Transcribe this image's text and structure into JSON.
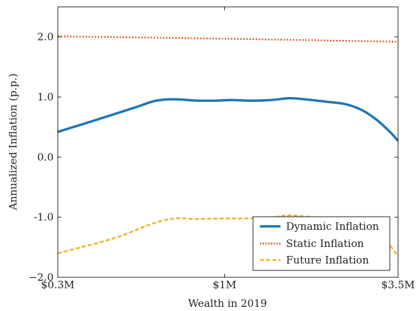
{
  "chart_data": {
    "type": "line",
    "xlabel": "Wealth in 2019",
    "ylabel": "Annualized Inflation (p.p.)",
    "x_scale": "log",
    "xlim": [
      0.3,
      3.5
    ],
    "ylim": [
      -2.0,
      2.5
    ],
    "x_ticks": [
      {
        "value": 0.3,
        "label": "$0.3M"
      },
      {
        "value": 1.0,
        "label": "$1M"
      },
      {
        "value": 3.5,
        "label": "$3.5M"
      }
    ],
    "y_ticks": [
      {
        "value": 2.0,
        "label": "2.0"
      },
      {
        "value": 1.0,
        "label": "1.0"
      },
      {
        "value": 0.0,
        "label": "0.0"
      },
      {
        "value": -1.0,
        "label": "-1.0"
      },
      {
        "value": -2.0,
        "label": "−2.0"
      }
    ],
    "grid": false,
    "legend_position": "bottom-right",
    "series": [
      {
        "name": "Dynamic Inflation",
        "color": "#1f77b4",
        "style": "solid",
        "x": [
          0.3,
          0.36,
          0.43,
          0.52,
          0.6,
          0.66,
          0.72,
          0.82,
          0.95,
          1.05,
          1.2,
          1.4,
          1.6,
          1.8,
          2.1,
          2.4,
          2.7,
          3.0,
          3.3,
          3.5
        ],
        "values": [
          0.42,
          0.55,
          0.68,
          0.82,
          0.93,
          0.96,
          0.96,
          0.94,
          0.94,
          0.95,
          0.94,
          0.95,
          0.98,
          0.96,
          0.92,
          0.88,
          0.78,
          0.62,
          0.42,
          0.27
        ]
      },
      {
        "name": "Static Inflation",
        "color": "#e05a1c",
        "style": "dotted",
        "x": [
          0.3,
          1.0,
          3.5
        ],
        "values": [
          2.01,
          1.97,
          1.92
        ]
      },
      {
        "name": "Future Inflation",
        "color": "#f0b12a",
        "style": "dashed",
        "x": [
          0.3,
          0.45,
          0.6,
          0.7,
          0.8,
          1.0,
          1.2,
          1.4,
          1.6,
          1.9,
          2.3,
          2.7,
          3.1,
          3.5
        ],
        "values": [
          -1.6,
          -1.35,
          -1.1,
          -1.02,
          -1.03,
          -1.02,
          -1.02,
          -1.0,
          -0.97,
          -1.0,
          -1.05,
          -1.12,
          -1.3,
          -1.65
        ]
      }
    ]
  }
}
